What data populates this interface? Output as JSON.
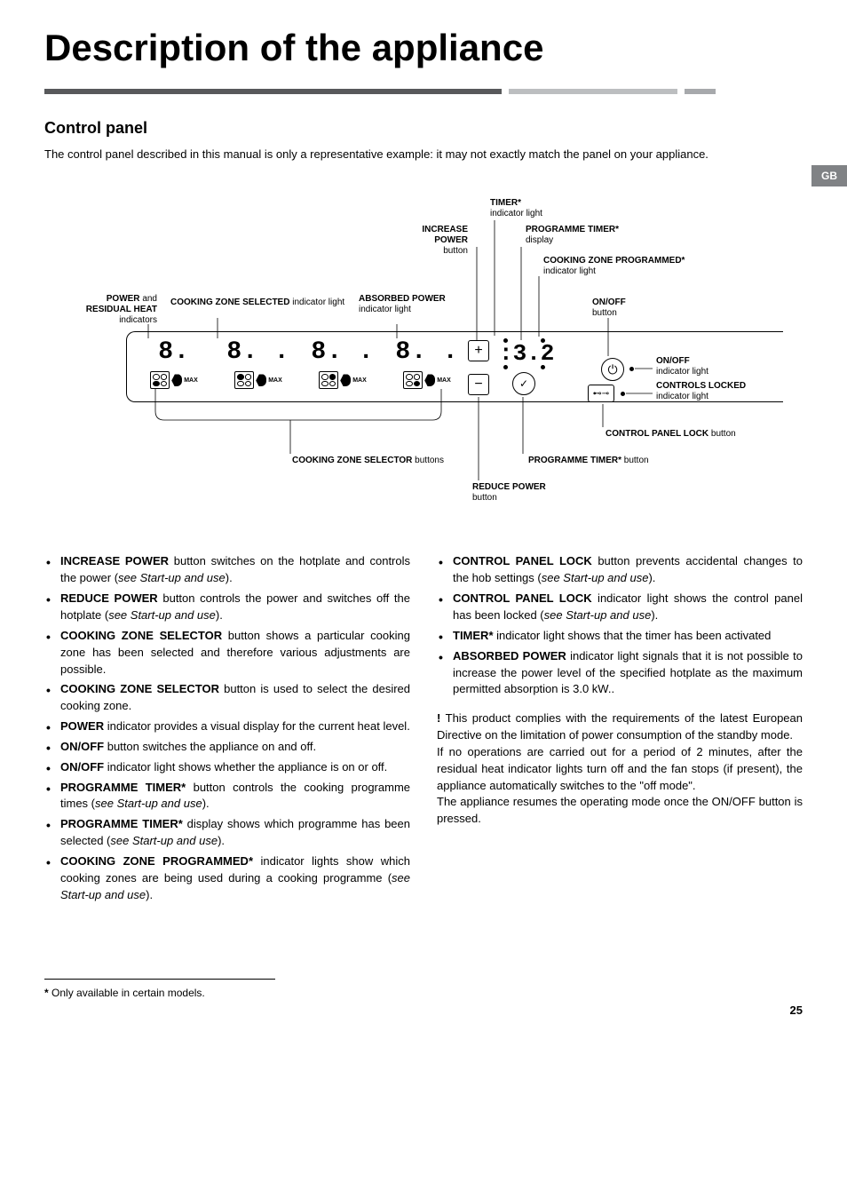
{
  "page": {
    "title": "Description of the appliance",
    "lang_tag": "GB",
    "page_number": "25"
  },
  "section": {
    "heading": "Control panel",
    "intro": "The control panel described in this manual is only a representative example: it may not exactly match the panel on your appliance."
  },
  "diagram": {
    "labels": {
      "timer_light": "TIMER*",
      "timer_light_sub": "indicator light",
      "increase_power": "INCREASE POWER",
      "increase_power_sub": "button",
      "prog_timer_disp": "PROGRAMME TIMER*",
      "prog_timer_disp_sub": "display",
      "zone_programmed": "COOKING ZONE PROGRAMMED*",
      "zone_programmed_sub": "indicator light",
      "power_residual": "POWER",
      "power_residual_and": "and",
      "power_residual2": "RESIDUAL HEAT",
      "power_residual_sub": "indicators",
      "zone_selected": "COOKING ZONE SELECTED",
      "zone_selected_sub": "indicator light",
      "absorbed": "ABSORBED POWER",
      "absorbed_sub": "indicator light",
      "onoff": "ON/OFF",
      "onoff_sub": "button",
      "onoff_light": "ON/OFF",
      "onoff_light_sub": "indicator light",
      "controls_locked": "CONTROLS LOCKED",
      "controls_locked_sub": "indicator light",
      "panel_lock": "CONTROL PANEL LOCK",
      "panel_lock_sub": "button",
      "prog_timer_btn": "PROGRAMME TIMER*",
      "prog_timer_btn_sub": "button",
      "zone_selector": "COOKING ZONE SELECTOR",
      "zone_selector_sub": "buttons",
      "reduce_power": "REDUCE POWER",
      "reduce_power_sub": "button"
    },
    "timer_display": ":3.2",
    "zones": [
      {
        "value": "8.",
        "filled": [
          false,
          false,
          true,
          false
        ]
      },
      {
        "value": "8. .",
        "filled": [
          true,
          false,
          false,
          false
        ]
      },
      {
        "value": "8. .",
        "filled": [
          false,
          true,
          false,
          false
        ]
      },
      {
        "value": "8. .",
        "filled": [
          false,
          false,
          false,
          true
        ]
      }
    ],
    "max_label": "MAX"
  },
  "bullets_left": [
    {
      "b": "INCREASE POWER",
      "t": " button switches on the hotplate and controls the power (",
      "it": "see Start-up and use",
      "tail": ")."
    },
    {
      "b": "REDUCE POWER",
      "t": " button controls the power and switches off the hotplate (",
      "it": "see Start-up and use",
      "tail": ")."
    },
    {
      "b": "COOKING ZONE SELECTOR",
      "t": " button shows a particular cooking zone has been selected and therefore various adjustments are possible."
    },
    {
      "b": "COOKING ZONE SELECTOR",
      "t": " button is used to select the desired cooking zone."
    },
    {
      "b": "POWER",
      "t": " indicator provides a visual display for the current heat level."
    },
    {
      "b": "ON/OFF",
      "t": " button switches the appliance on and off."
    },
    {
      "b": "ON/OFF",
      "t": " indicator light shows whether the appliance is on or off."
    },
    {
      "b": "PROGRAMME TIMER*",
      "t": " button controls the cooking programme times (",
      "it": "see Start-up and use",
      "tail": ")."
    },
    {
      "b": "PROGRAMME TIMER*",
      "t": " display shows which programme has been selected (",
      "it": "see Start-up and use",
      "tail": ")."
    },
    {
      "b": "COOKING ZONE PROGRAMMED*",
      "t": " indicator lights show which cooking zones are being used during a cooking programme (",
      "it": "see Start-up and use",
      "tail": ")."
    }
  ],
  "bullets_right": [
    {
      "b": "CONTROL PANEL LOCK",
      "t": " button prevents accidental changes to the hob settings (",
      "it": "see Start-up and use",
      "tail": ")."
    },
    {
      "b": "CONTROL PANEL LOCK",
      "t": " indicator light shows the control panel has been locked (",
      "it": "see Start-up and use",
      "tail": ")."
    },
    {
      "b": "TIMER*",
      "t": " indicator light shows that the timer has been activated"
    },
    {
      "b": "ABSORBED POWER",
      "t": " indicator light signals that it is not possible to increase the power level of the specified hotplate as the maximum permitted absorption is 3.0 kW.."
    }
  ],
  "compliance": {
    "p1": "This product complies with the requirements of the latest European Directive on the limitation of power consumption of the standby mode.",
    "p2": "If no operations are carried out for a period of 2 minutes, after the residual heat indicator lights turn off and the fan stops (if present), the appliance automatically switches to the \"off mode\".",
    "p3": "The appliance resumes the operating mode once the ON/OFF button is pressed."
  },
  "footnote": "Only available in certain models."
}
